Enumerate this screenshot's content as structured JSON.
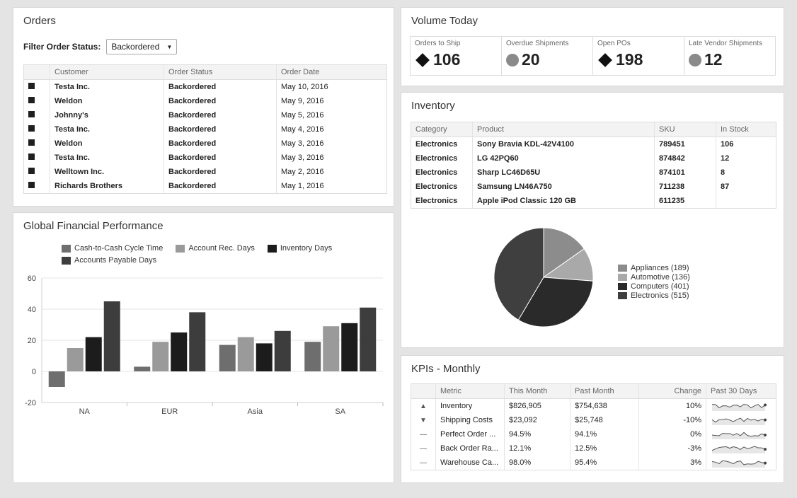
{
  "orders": {
    "title": "Orders",
    "filter_label": "Filter Order Status:",
    "filter_value": "Backordered",
    "columns": [
      "Customer",
      "Order Status",
      "Order Date"
    ],
    "rows": [
      {
        "customer": "Testa Inc.",
        "status": "Backordered",
        "date": "May 10, 2016"
      },
      {
        "customer": "Weldon",
        "status": "Backordered",
        "date": "May 9, 2016"
      },
      {
        "customer": "Johnny's",
        "status": "Backordered",
        "date": "May 5, 2016"
      },
      {
        "customer": "Testa Inc.",
        "status": "Backordered",
        "date": "May 4, 2016"
      },
      {
        "customer": "Weldon",
        "status": "Backordered",
        "date": "May 3, 2016"
      },
      {
        "customer": "Testa Inc.",
        "status": "Backordered",
        "date": "May 3, 2016"
      },
      {
        "customer": "Welltown Inc.",
        "status": "Backordered",
        "date": "May 2, 2016"
      },
      {
        "customer": "Richards Brothers",
        "status": "Backordered",
        "date": "May 1, 2016"
      }
    ]
  },
  "volume": {
    "title": "Volume Today",
    "tiles": [
      {
        "label": "Orders to Ship",
        "value": "106",
        "icon": "diamond-icon"
      },
      {
        "label": "Overdue Shipments",
        "value": "20",
        "icon": "circle-icon"
      },
      {
        "label": "Open POs",
        "value": "198",
        "icon": "diamond-icon"
      },
      {
        "label": "Late Vendor Shipments",
        "value": "12",
        "icon": "circle-icon"
      }
    ]
  },
  "inventory": {
    "title": "Inventory",
    "columns": [
      "Category",
      "Product",
      "SKU",
      "In Stock"
    ],
    "rows": [
      {
        "category": "Electronics",
        "product": "Sony Bravia KDL-42V4100",
        "sku": "789451",
        "stock": "106"
      },
      {
        "category": "Electronics",
        "product": "LG 42PQ60",
        "sku": "874842",
        "stock": "12"
      },
      {
        "category": "Electronics",
        "product": "Sharp LC46D65U",
        "sku": "874101",
        "stock": "8"
      },
      {
        "category": "Electronics",
        "product": "Samsung LN46A750",
        "sku": "711238",
        "stock": "87"
      },
      {
        "category": "Electronics",
        "product": "Apple iPod Classic 120 GB",
        "sku": "611235",
        "stock": ""
      }
    ]
  },
  "kpis": {
    "title": "KPIs - Monthly",
    "columns": [
      "Metric",
      "This Month",
      "Past Month",
      "Change",
      "Past 30 Days"
    ],
    "rows": [
      {
        "icon": "warning-icon",
        "metric": "Inventory",
        "this": "$826,905",
        "past": "$754,638",
        "change": "10%"
      },
      {
        "icon": "down-arrow-icon",
        "metric": "Shipping Costs",
        "this": "$23,092",
        "past": "$25,748",
        "change": "-10%"
      },
      {
        "icon": "dash-icon",
        "metric": "Perfect Order ...",
        "this": "94.5%",
        "past": "94.1%",
        "change": "0%"
      },
      {
        "icon": "dash-icon",
        "metric": "Back Order Ra...",
        "this": "12.1%",
        "past": "12.5%",
        "change": "-3%"
      },
      {
        "icon": "dash-icon",
        "metric": "Warehouse Ca...",
        "this": "98.0%",
        "past": "95.4%",
        "change": "3%"
      }
    ]
  },
  "financial": {
    "title": "Global Financial Performance"
  },
  "chart_data": [
    {
      "type": "bar",
      "title": "Global Financial Performance",
      "categories": [
        "NA",
        "EUR",
        "Asia",
        "SA"
      ],
      "series": [
        {
          "name": "Cash-to-Cash Cycle Time",
          "values": [
            -10,
            3,
            17,
            19
          ],
          "color": "#6e6e6e"
        },
        {
          "name": "Account Rec. Days",
          "values": [
            15,
            19,
            22,
            29
          ],
          "color": "#9a9a9a"
        },
        {
          "name": "Inventory Days",
          "values": [
            22,
            25,
            18,
            31
          ],
          "color": "#1c1c1c"
        },
        {
          "name": "Accounts Payable Days",
          "values": [
            45,
            38,
            26,
            41
          ],
          "color": "#3d3d3d"
        }
      ],
      "ylim": [
        -20,
        60
      ],
      "yticks": [
        60,
        40,
        20,
        0,
        -20
      ],
      "legend_position": "top",
      "grid": true
    },
    {
      "type": "pie",
      "labels": [
        "Appliances (189)",
        "Automotive (136)",
        "Computers (401)",
        "Electronics (515)"
      ],
      "values": [
        189,
        136,
        401,
        515
      ],
      "colors": [
        "#8c8c8c",
        "#a9a9a9",
        "#2a2a2a",
        "#3f3f3f"
      ],
      "legend_position": "right"
    }
  ]
}
